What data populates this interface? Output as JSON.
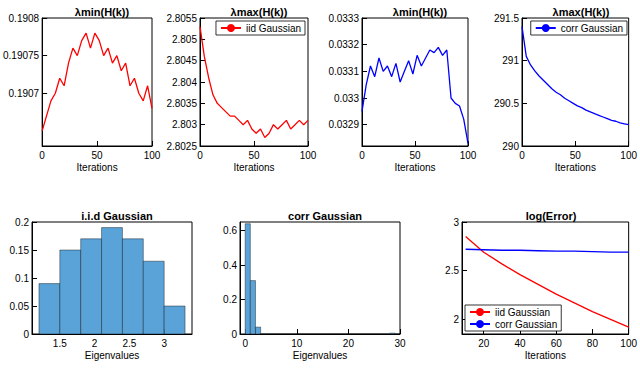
{
  "chart_data": [
    {
      "type": "line",
      "title": "λmin(H(k))",
      "x_label": "Iterations",
      "x": [
        0,
        4,
        8,
        12,
        16,
        20,
        24,
        28,
        32,
        36,
        40,
        44,
        48,
        52,
        56,
        60,
        64,
        68,
        72,
        76,
        80,
        84,
        88,
        92,
        96,
        100
      ],
      "series": [
        {
          "color": "#ff0000",
          "values": [
            0.19065,
            0.19067,
            0.19069,
            0.1907,
            0.19072,
            0.19071,
            0.19074,
            0.19076,
            0.19075,
            0.19077,
            0.19078,
            0.19076,
            0.19078,
            0.19077,
            0.19075,
            0.19076,
            0.19074,
            0.19075,
            0.19073,
            0.19074,
            0.19071,
            0.19072,
            0.1907,
            0.19069,
            0.19071,
            0.19068
          ]
        }
      ],
      "xlim": [
        0,
        100
      ],
      "xticks": [
        0,
        50,
        100
      ],
      "ylim": [
        0.19063,
        0.1908
      ],
      "yticks": [
        0.1907,
        0.19075,
        0.1908
      ],
      "grid": false
    },
    {
      "type": "line",
      "title": "λmax(H(k))",
      "x_label": "Iterations",
      "x": [
        0,
        4,
        8,
        12,
        16,
        20,
        24,
        28,
        32,
        36,
        40,
        44,
        48,
        52,
        56,
        60,
        64,
        68,
        72,
        76,
        80,
        84,
        88,
        92,
        96,
        100
      ],
      "series": [
        {
          "name": "iid Gaussian",
          "color": "#ff0000",
          "values": [
            2.8053,
            2.8046,
            2.8041,
            2.8037,
            2.8035,
            2.8034,
            2.8033,
            2.8032,
            2.8032,
            2.8031,
            2.803,
            2.8031,
            2.8029,
            2.8028,
            2.8029,
            2.8027,
            2.8028,
            2.803,
            2.8029,
            2.803,
            2.8031,
            2.8029,
            2.803,
            2.8031,
            2.803,
            2.8031
          ]
        }
      ],
      "xlim": [
        0,
        100
      ],
      "xticks": [
        0,
        50,
        100
      ],
      "ylim": [
        2.8025,
        2.8055
      ],
      "yticks": [
        2.8025,
        2.803,
        2.8035,
        2.804,
        2.8045,
        2.805,
        2.8055
      ],
      "grid": false,
      "legend": "upper right"
    },
    {
      "type": "line",
      "title": "λmin(H(k))",
      "x_label": "Iterations",
      "x": [
        0,
        4,
        8,
        12,
        16,
        20,
        24,
        28,
        32,
        36,
        40,
        44,
        48,
        52,
        56,
        60,
        64,
        68,
        72,
        76,
        80,
        84,
        88,
        92,
        96,
        100
      ],
      "series": [
        {
          "color": "#0000ff",
          "values": [
            0.03295,
            0.03305,
            0.03312,
            0.03308,
            0.03315,
            0.0331,
            0.03312,
            0.03308,
            0.03313,
            0.03306,
            0.0331,
            0.03314,
            0.03309,
            0.03316,
            0.03312,
            0.03315,
            0.03318,
            0.03317,
            0.03319,
            0.03316,
            0.03318,
            0.033,
            0.03298,
            0.03297,
            0.03292,
            0.03283
          ]
        }
      ],
      "xlim": [
        0,
        100
      ],
      "xticks": [
        0,
        50,
        100
      ],
      "ylim": [
        0.03282,
        0.0333
      ],
      "yticks": [
        0.0329,
        0.033,
        0.0331,
        0.0332,
        0.0333
      ],
      "grid": false
    },
    {
      "type": "line",
      "title": "λmax(H(k))",
      "x_label": "Iterations",
      "x": [
        0,
        4,
        8,
        12,
        16,
        20,
        24,
        28,
        32,
        36,
        40,
        44,
        48,
        52,
        56,
        60,
        64,
        68,
        72,
        76,
        80,
        84,
        88,
        92,
        96,
        100
      ],
      "series": [
        {
          "name": "corr Gaussian",
          "color": "#0000ff",
          "values": [
            291.4,
            291.05,
            290.95,
            290.88,
            290.82,
            290.77,
            290.72,
            290.67,
            290.63,
            290.6,
            290.56,
            290.53,
            290.5,
            290.47,
            290.45,
            290.42,
            290.4,
            290.38,
            290.36,
            290.34,
            290.32,
            290.3,
            290.29,
            290.27,
            290.26,
            290.25
          ]
        }
      ],
      "xlim": [
        0,
        100
      ],
      "xticks": [
        0,
        50,
        100
      ],
      "ylim": [
        290,
        291.5
      ],
      "yticks": [
        290,
        290.5,
        291,
        291.5
      ],
      "grid": false,
      "legend": "upper right"
    },
    {
      "type": "histogram",
      "title": "i.i.d Gaussian",
      "x_label": "Eigenvalues",
      "bins": [
        1.2,
        1.5,
        1.8,
        2.1,
        2.4,
        2.7,
        3.0,
        3.3
      ],
      "counts": [
        0.09,
        0.15,
        0.17,
        0.19,
        0.17,
        0.13,
        0.05
      ],
      "color": "#5aa3d8",
      "xlim": [
        1.1,
        3.4
      ],
      "xticks": [
        1.5,
        2,
        2.5,
        3
      ],
      "ylim": [
        0,
        0.2
      ],
      "yticks": [
        0,
        0.05,
        0.1,
        0.15,
        0.2
      ],
      "grid": false
    },
    {
      "type": "histogram",
      "title": "corr Gaussian",
      "x_label": "Eigenvalues",
      "bins": [
        0,
        1,
        2,
        3,
        4,
        5,
        6,
        7,
        8,
        9,
        10,
        11,
        12,
        13,
        14,
        15,
        16,
        17,
        18,
        19,
        20,
        21,
        22,
        23,
        24,
        25,
        26,
        27,
        28,
        29,
        30
      ],
      "counts": [
        0.64,
        0.31,
        0.04,
        0,
        0,
        0,
        0,
        0,
        0,
        0,
        0,
        0,
        0,
        0,
        0,
        0,
        0,
        0,
        0,
        0,
        0,
        0,
        0,
        0,
        0,
        0,
        0,
        0,
        0.005,
        0
      ],
      "color": "#5aa3d8",
      "xlim": [
        -1,
        30
      ],
      "xticks": [
        0,
        10,
        20,
        30
      ],
      "ylim": [
        0,
        0.65
      ],
      "yticks": [
        0,
        0.2,
        0.4,
        0.6
      ],
      "grid": false
    },
    {
      "type": "line",
      "title": "log(Error)",
      "x_label": "Iterations",
      "x": [
        10,
        20,
        30,
        40,
        50,
        60,
        70,
        80,
        90,
        100
      ],
      "series": [
        {
          "name": "iid Gaussian",
          "color": "#ff0000",
          "values": [
            2.85,
            2.69,
            2.57,
            2.46,
            2.36,
            2.26,
            2.17,
            2.08,
            2.0,
            1.92
          ]
        },
        {
          "name": "corr Gaussian",
          "color": "#0000ff",
          "values": [
            2.72,
            2.715,
            2.71,
            2.71,
            2.705,
            2.7,
            2.7,
            2.695,
            2.69,
            2.69
          ]
        }
      ],
      "xlim": [
        8,
        100
      ],
      "xticks": [
        20,
        40,
        60,
        80,
        100
      ],
      "ylim": [
        1.85,
        3
      ],
      "yticks": [
        2,
        2.5,
        3
      ],
      "grid": false,
      "legend": "lower left"
    }
  ]
}
